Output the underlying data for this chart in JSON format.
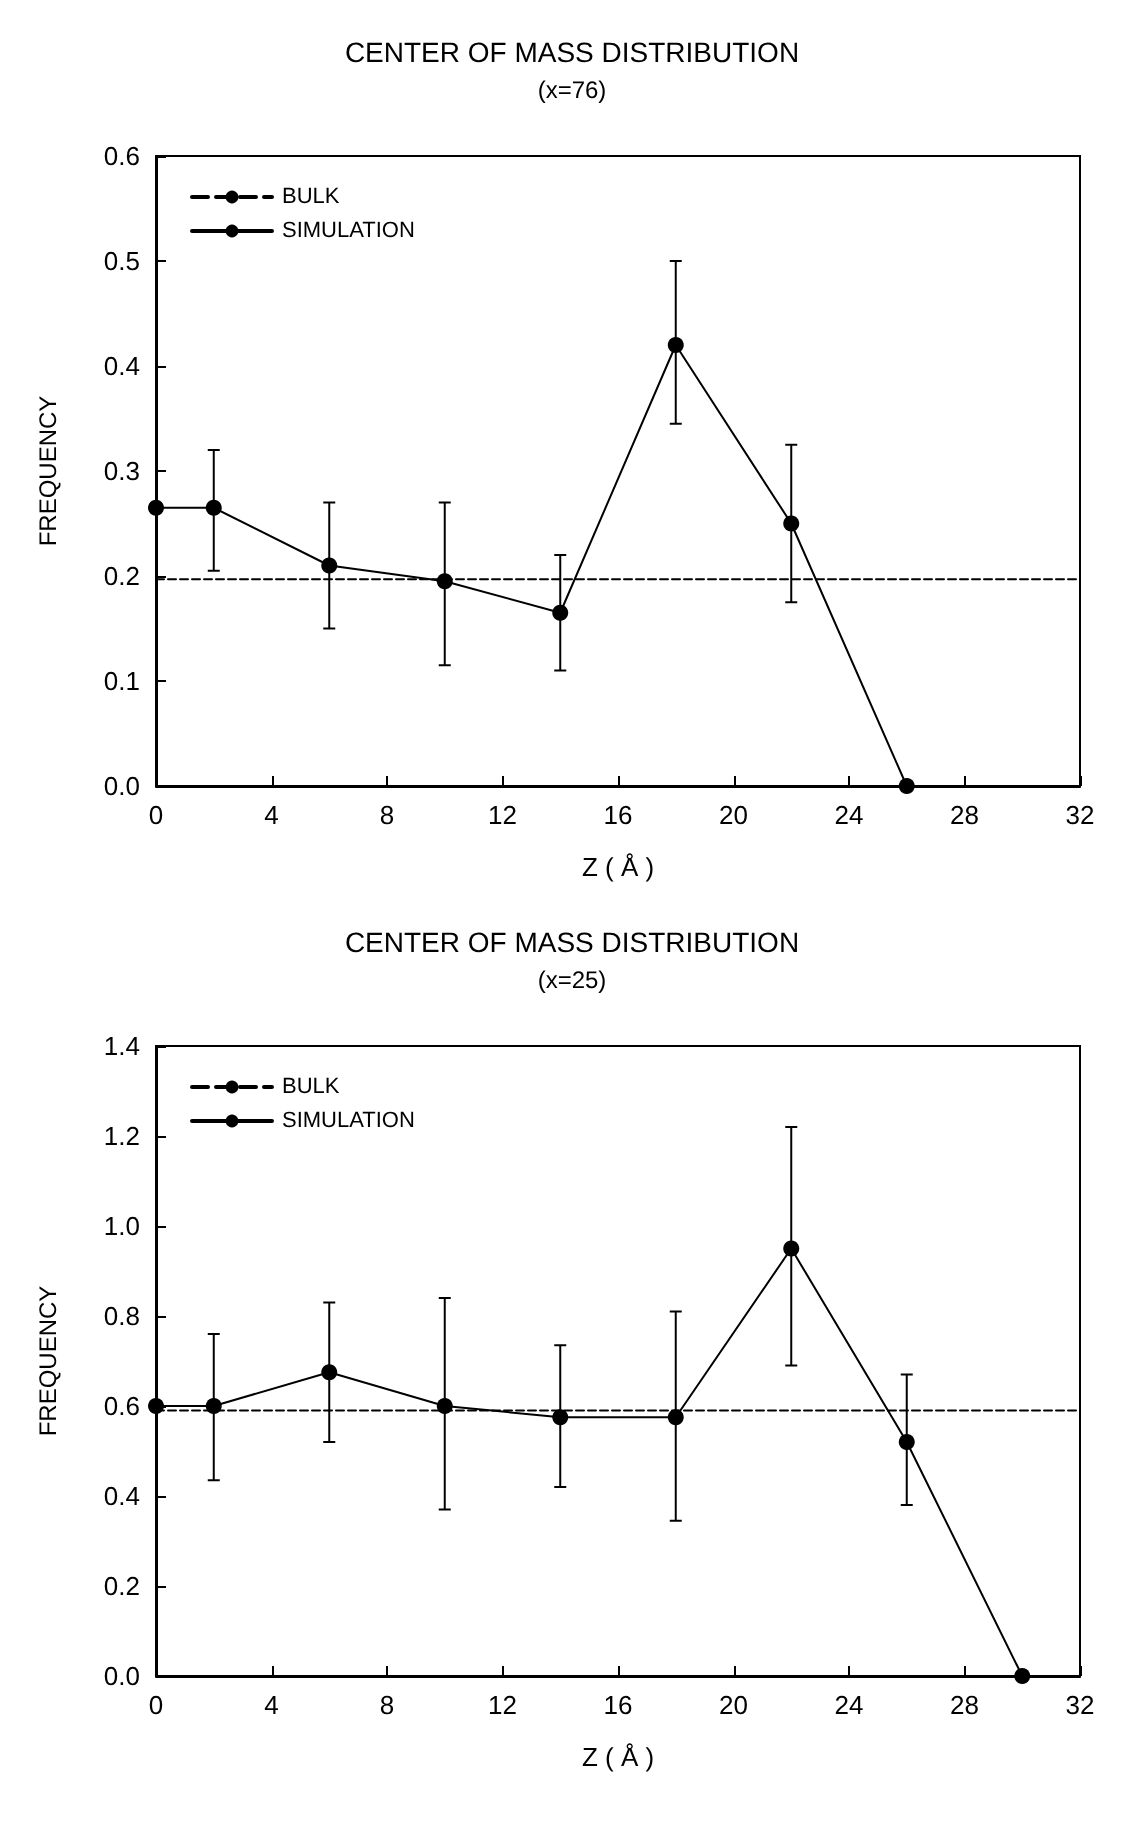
{
  "chart_data": [
    {
      "type": "line",
      "title": "CENTER OF MASS DISTRIBUTION",
      "subtitle": "(x=76)",
      "xlabel": "Z ( Å )",
      "ylabel": "FREQUENCY",
      "xlim": [
        0,
        32
      ],
      "xticks": [
        0,
        4,
        8,
        12,
        16,
        20,
        24,
        28,
        32
      ],
      "ylim": [
        0,
        0.6
      ],
      "yticks": [
        {
          "value": 0,
          "label": "0.0"
        },
        {
          "value": 0.1,
          "label": "0.1"
        },
        {
          "value": 0.2,
          "label": "0.2"
        },
        {
          "value": 0.3,
          "label": "0.3"
        },
        {
          "value": 0.4,
          "label": "0.4"
        },
        {
          "value": 0.5,
          "label": "0.5"
        },
        {
          "value": 0.6,
          "label": "0.6"
        }
      ],
      "grid": false,
      "legend": "top left",
      "series": [
        {
          "name": "BULK",
          "color": "#000000",
          "x": [
            0,
            32
          ],
          "values": [
            0.197,
            0.197
          ],
          "line_style": "dashed",
          "marker": "none"
        },
        {
          "name": "SIMULATION",
          "color": "#000000",
          "x": [
            0,
            2,
            6,
            10,
            14,
            18,
            22,
            26
          ],
          "values": [
            0.265,
            0.265,
            0.21,
            0.195,
            0.165,
            0.42,
            0.25,
            0.0
          ],
          "line_style": "solid",
          "marker": "circle",
          "errors": [
            null,
            [
              0.205,
              0.32
            ],
            [
              0.15,
              0.27
            ],
            [
              0.115,
              0.27
            ],
            [
              0.11,
              0.22
            ],
            [
              0.345,
              0.5
            ],
            [
              0.175,
              0.325
            ],
            null
          ]
        }
      ]
    },
    {
      "type": "line",
      "title": "CENTER OF MASS DISTRIBUTION",
      "subtitle": "(x=25)",
      "xlabel": "Z ( Å )",
      "ylabel": "FREQUENCY",
      "xlim": [
        0,
        32
      ],
      "xticks": [
        0,
        4,
        8,
        12,
        16,
        20,
        24,
        28,
        32
      ],
      "ylim": [
        0,
        1.4
      ],
      "yticks": [
        {
          "value": 0,
          "label": "0.0"
        },
        {
          "value": 0.2,
          "label": "0.2"
        },
        {
          "value": 0.4,
          "label": "0.4"
        },
        {
          "value": 0.6,
          "label": "0.6"
        },
        {
          "value": 0.8,
          "label": "0.8"
        },
        {
          "value": 1.0,
          "label": "1.0"
        },
        {
          "value": 1.2,
          "label": "1.2"
        },
        {
          "value": 1.4,
          "label": "1.4"
        }
      ],
      "grid": false,
      "legend": "top left",
      "series": [
        {
          "name": "BULK",
          "color": "#000000",
          "x": [
            0,
            32
          ],
          "values": [
            0.59,
            0.59
          ],
          "line_style": "dashed",
          "marker": "none"
        },
        {
          "name": "SIMULATION",
          "color": "#000000",
          "x": [
            0,
            2,
            6,
            10,
            14,
            18,
            22,
            26,
            30
          ],
          "values": [
            0.6,
            0.6,
            0.675,
            0.6,
            0.575,
            0.575,
            0.95,
            0.52,
            0.0
          ],
          "line_style": "solid",
          "marker": "circle",
          "errors": [
            null,
            [
              0.435,
              0.76
            ],
            [
              0.52,
              0.83
            ],
            [
              0.37,
              0.84
            ],
            [
              0.42,
              0.735
            ],
            [
              0.345,
              0.81
            ],
            [
              0.69,
              1.22
            ],
            [
              0.38,
              0.67
            ],
            null
          ]
        }
      ]
    }
  ]
}
